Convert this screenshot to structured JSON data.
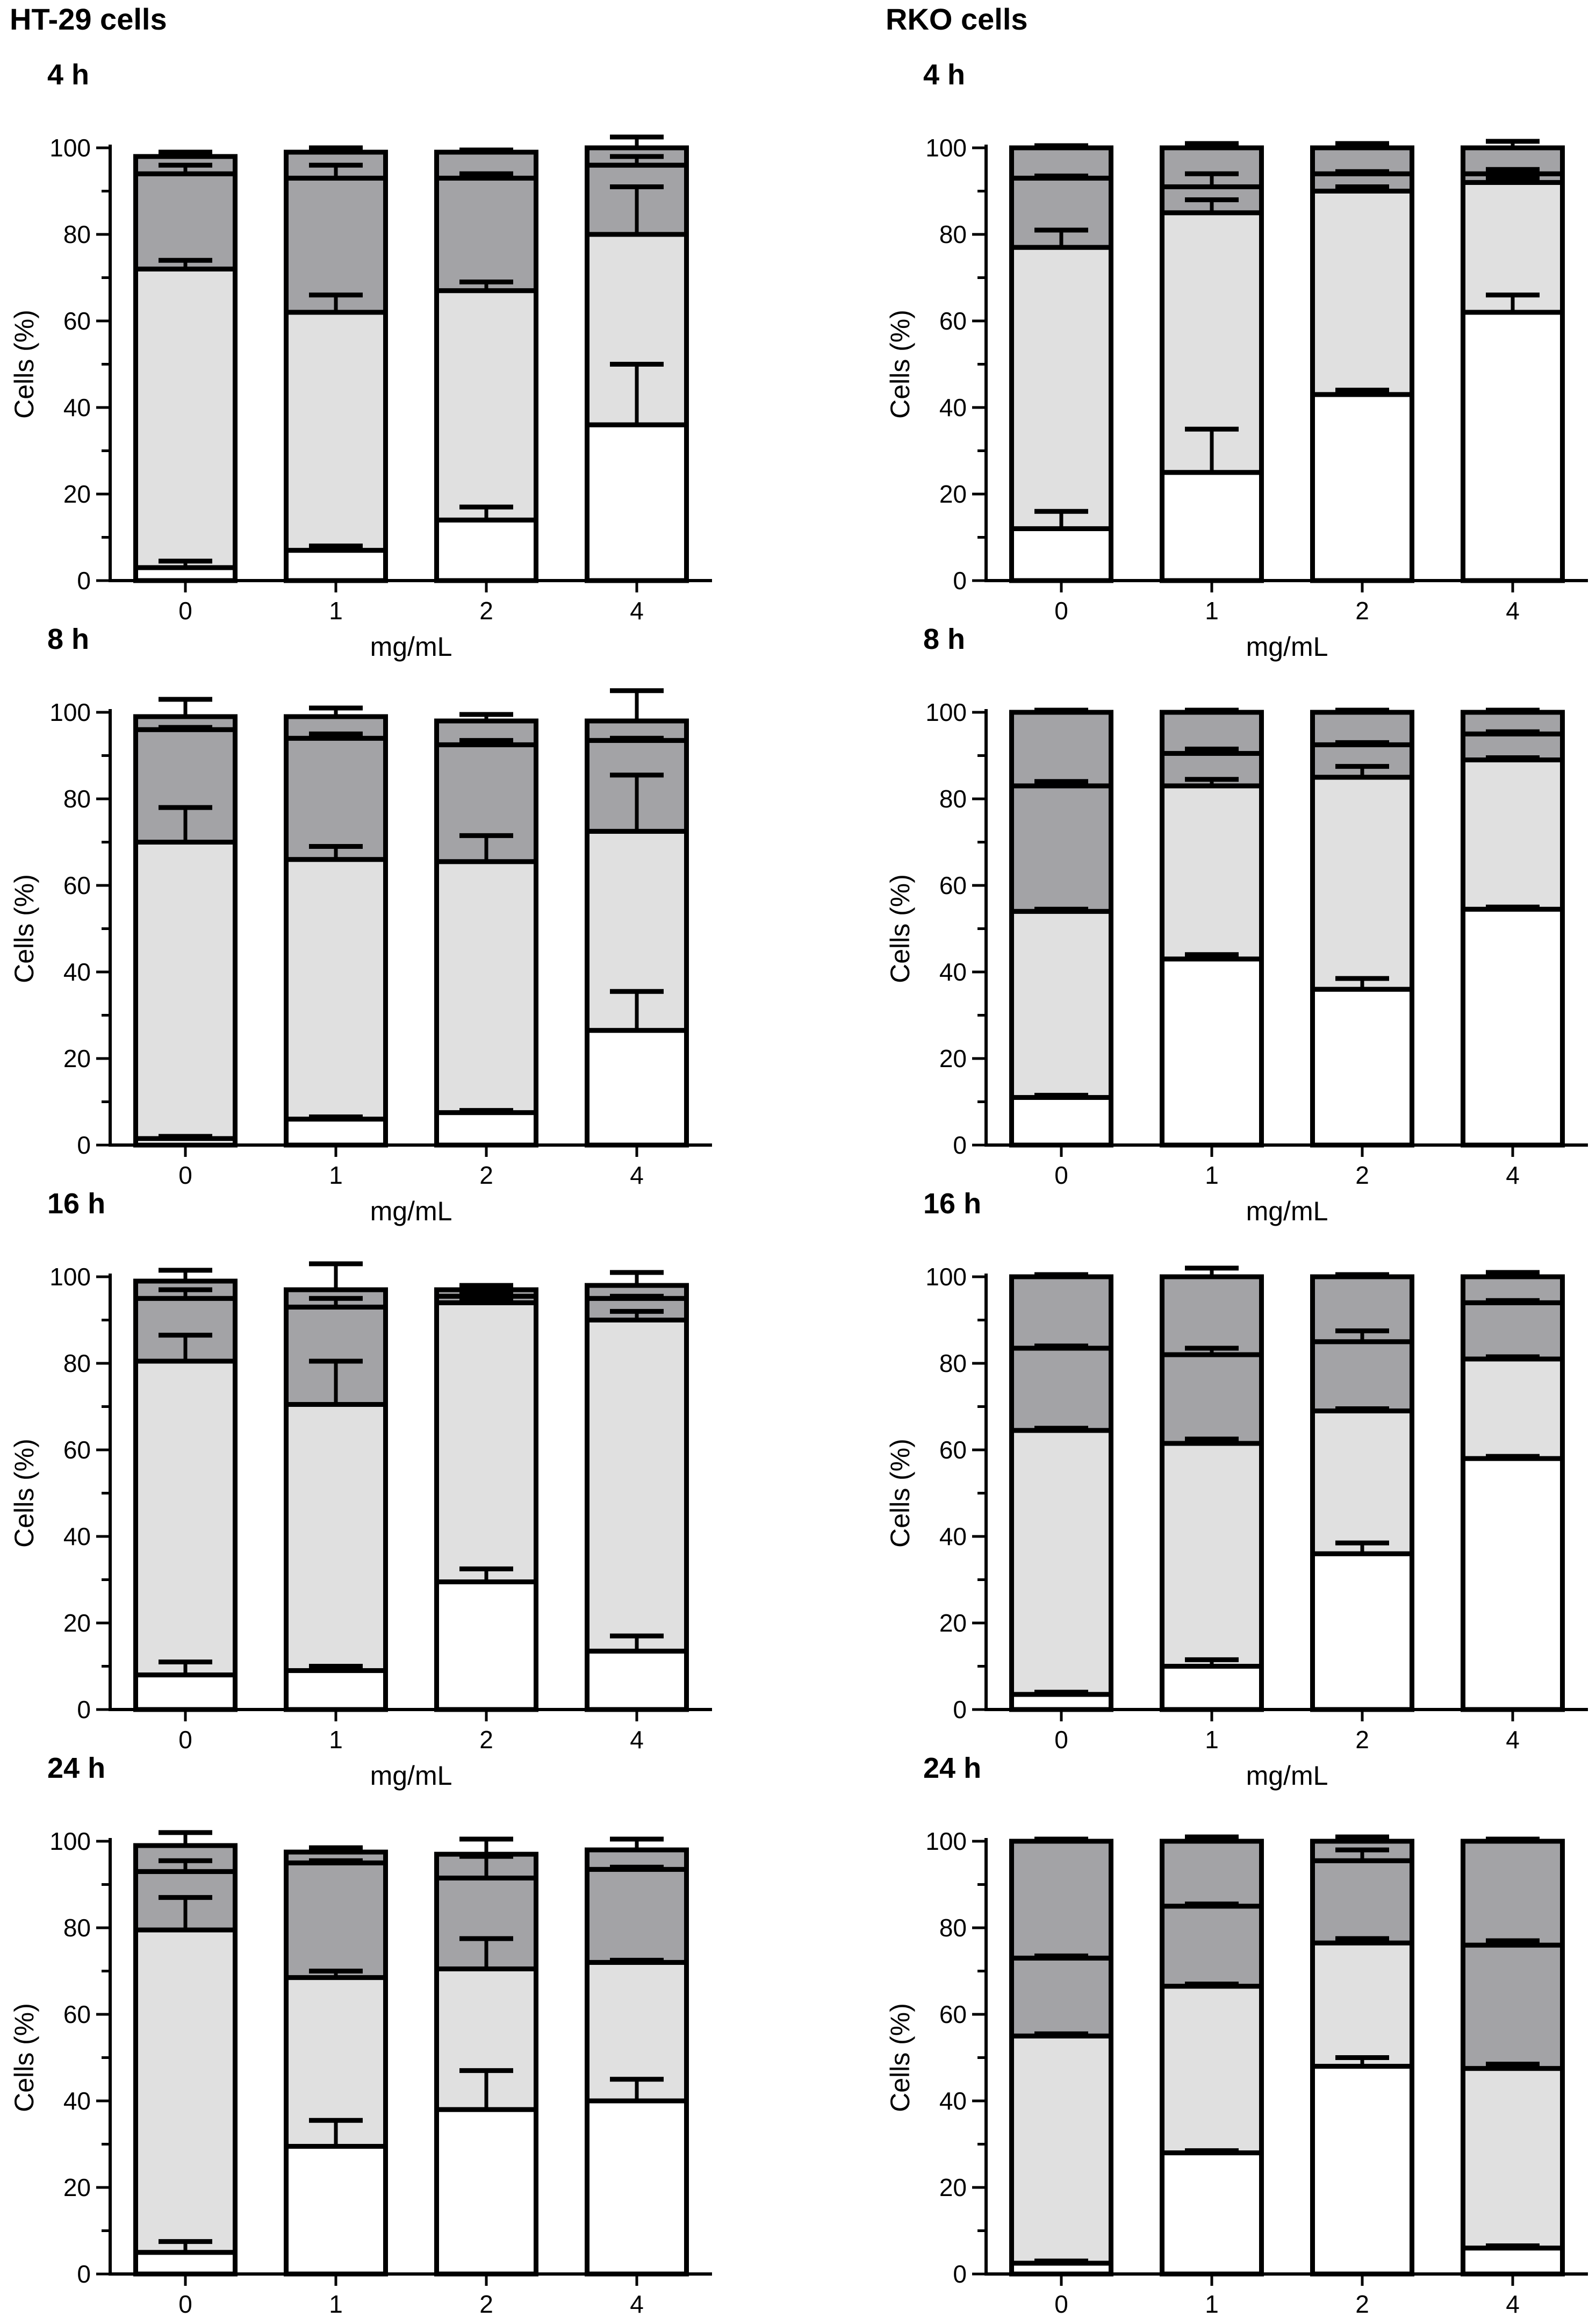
{
  "columns": [
    {
      "title": "HT-29 cells"
    },
    {
      "title": "RKO cells"
    }
  ],
  "colors": {
    "seg1": "#ffffff",
    "seg2": "#e0e0e0",
    "seg3": "#a3a3a6",
    "seg4": "#a3a3a6",
    "stroke": "#000000"
  },
  "chart_data": [
    {
      "type": "bar",
      "stacked": true,
      "cell_line": "HT-29 cells",
      "title": "4 h",
      "categories": [
        "0",
        "1",
        "2",
        "4"
      ],
      "xlabel": "mg/mL",
      "ylabel": "Cells (%)",
      "ylim": [
        0,
        100
      ],
      "yticks": [
        0,
        20,
        40,
        60,
        80,
        100
      ],
      "grid": false,
      "series": [
        {
          "values": [
            3,
            7,
            14,
            36
          ],
          "errors": [
            1.5,
            1,
            3,
            14
          ]
        },
        {
          "values": [
            69,
            55,
            53,
            44
          ],
          "errors": [
            2,
            4,
            2,
            11
          ]
        },
        {
          "values": [
            22,
            31,
            26,
            16
          ],
          "errors": [
            2,
            3,
            1,
            2
          ]
        },
        {
          "values": [
            4,
            6,
            6,
            4
          ],
          "errors": [
            1,
            1,
            0.5,
            2.5
          ]
        }
      ]
    },
    {
      "type": "bar",
      "stacked": true,
      "cell_line": "RKO cells",
      "title": "4 h",
      "categories": [
        "0",
        "1",
        "2",
        "4"
      ],
      "xlabel": "mg/mL",
      "ylabel": "Cells (%)",
      "ylim": [
        0,
        100
      ],
      "yticks": [
        0,
        20,
        40,
        60,
        80,
        100
      ],
      "grid": false,
      "series": [
        {
          "values": [
            12,
            25,
            43,
            62
          ],
          "errors": [
            4,
            10,
            1,
            4
          ]
        },
        {
          "values": [
            65,
            60,
            47,
            30
          ],
          "errors": [
            4,
            3,
            1,
            1
          ]
        },
        {
          "values": [
            16,
            6,
            4,
            2
          ],
          "errors": [
            0.5,
            3,
            0.5,
            1
          ]
        },
        {
          "values": [
            7,
            9,
            6,
            6
          ],
          "errors": [
            0.5,
            1,
            1,
            1.5
          ]
        }
      ]
    },
    {
      "type": "bar",
      "stacked": true,
      "cell_line": "HT-29 cells",
      "title": "8 h",
      "categories": [
        "0",
        "1",
        "2",
        "4"
      ],
      "xlabel": "mg/mL",
      "ylabel": "Cells (%)",
      "ylim": [
        0,
        100
      ],
      "yticks": [
        0,
        20,
        40,
        60,
        80,
        100
      ],
      "grid": false,
      "series": [
        {
          "values": [
            1.5,
            6,
            7.5,
            26.5
          ],
          "errors": [
            0.5,
            0.5,
            0.5,
            9
          ]
        },
        {
          "values": [
            68.5,
            60,
            58,
            46
          ],
          "errors": [
            8,
            3,
            6,
            13
          ]
        },
        {
          "values": [
            26,
            28,
            27,
            21
          ],
          "errors": [
            0.5,
            1,
            1,
            0.5
          ]
        },
        {
          "values": [
            3,
            5,
            5.5,
            4.5
          ],
          "errors": [
            4,
            2,
            1.5,
            7
          ]
        }
      ]
    },
    {
      "type": "bar",
      "stacked": true,
      "cell_line": "RKO cells",
      "title": "8 h",
      "categories": [
        "0",
        "1",
        "2",
        "4"
      ],
      "xlabel": "mg/mL",
      "ylabel": "Cells (%)",
      "ylim": [
        0,
        100
      ],
      "yticks": [
        0,
        20,
        40,
        60,
        80,
        100
      ],
      "grid": false,
      "series": [
        {
          "values": [
            11,
            43,
            36,
            54.5
          ],
          "errors": [
            0.5,
            1,
            2.5,
            0.5
          ]
        },
        {
          "values": [
            43,
            40,
            49,
            34.5
          ],
          "errors": [
            0.5,
            1.5,
            2.5,
            0.5
          ]
        },
        {
          "values": [
            29,
            7.5,
            7.5,
            6
          ],
          "errors": [
            1,
            1,
            0.5,
            0.5
          ]
        },
        {
          "values": [
            17,
            9.5,
            7.5,
            5
          ],
          "errors": [
            0.5,
            0.5,
            0.5,
            0.5
          ]
        }
      ]
    },
    {
      "type": "bar",
      "stacked": true,
      "cell_line": "HT-29 cells",
      "title": "16 h",
      "categories": [
        "0",
        "1",
        "2",
        "4"
      ],
      "xlabel": "mg/mL",
      "ylabel": "Cells (%)",
      "ylim": [
        0,
        100
      ],
      "yticks": [
        0,
        20,
        40,
        60,
        80,
        100
      ],
      "grid": false,
      "series": [
        {
          "values": [
            8,
            9,
            29.5,
            13.5
          ],
          "errors": [
            3,
            1,
            3,
            3.5
          ]
        },
        {
          "values": [
            72.5,
            61.5,
            64.5,
            76.5
          ],
          "errors": [
            6,
            10,
            1,
            2
          ]
        },
        {
          "values": [
            14.5,
            22.5,
            1.5,
            5
          ],
          "errors": [
            2,
            2,
            0.5,
            0.5
          ]
        },
        {
          "values": [
            4,
            4,
            1.5,
            3
          ],
          "errors": [
            2.5,
            6,
            1,
            3
          ]
        }
      ]
    },
    {
      "type": "bar",
      "stacked": true,
      "cell_line": "RKO cells",
      "title": "16 h",
      "categories": [
        "0",
        "1",
        "2",
        "4"
      ],
      "xlabel": "mg/mL",
      "ylabel": "Cells (%)",
      "ylim": [
        0,
        100
      ],
      "yticks": [
        0,
        20,
        40,
        60,
        80,
        100
      ],
      "grid": false,
      "series": [
        {
          "values": [
            3.5,
            10,
            36,
            58
          ],
          "errors": [
            0.5,
            1.5,
            2.5,
            0.5
          ]
        },
        {
          "values": [
            61,
            51.5,
            33,
            23
          ],
          "errors": [
            0.5,
            1,
            0.5,
            0.5
          ]
        },
        {
          "values": [
            19,
            20.5,
            16,
            13
          ],
          "errors": [
            0.5,
            1.5,
            2.5,
            0.5
          ]
        },
        {
          "values": [
            16.5,
            18,
            15,
            6
          ],
          "errors": [
            0.5,
            2,
            0.5,
            1
          ]
        }
      ]
    },
    {
      "type": "bar",
      "stacked": true,
      "cell_line": "HT-29 cells",
      "title": "24 h",
      "categories": [
        "0",
        "1",
        "2",
        "4"
      ],
      "xlabel": "mg/mL",
      "ylabel": "Cells (%)",
      "ylim": [
        0,
        100
      ],
      "yticks": [
        0,
        20,
        40,
        60,
        80,
        100
      ],
      "grid": false,
      "series": [
        {
          "values": [
            5,
            29.5,
            38,
            40
          ],
          "errors": [
            2.5,
            6,
            9,
            5
          ]
        },
        {
          "values": [
            74.5,
            39,
            32.5,
            32
          ],
          "errors": [
            7.5,
            1.5,
            7,
            0.5
          ]
        },
        {
          "values": [
            13.5,
            26.5,
            21,
            21.5
          ],
          "errors": [
            2.5,
            0.5,
            5,
            0.5
          ]
        },
        {
          "values": [
            6,
            2.5,
            5.5,
            4.5
          ],
          "errors": [
            3,
            1,
            3.5,
            2.5
          ]
        }
      ]
    },
    {
      "type": "bar",
      "stacked": true,
      "cell_line": "RKO cells",
      "title": "24 h",
      "categories": [
        "0",
        "1",
        "2",
        "4"
      ],
      "xlabel": "mg/mL",
      "ylabel": "Cells (%)",
      "ylim": [
        0,
        100
      ],
      "yticks": [
        0,
        20,
        40,
        60,
        80,
        100
      ],
      "grid": false,
      "series": [
        {
          "values": [
            2.5,
            28,
            48,
            6
          ],
          "errors": [
            0.5,
            0.5,
            2,
            0.5
          ]
        },
        {
          "values": [
            52.5,
            38.5,
            28.5,
            41.5
          ],
          "errors": [
            0.5,
            0.5,
            1,
            1
          ]
        },
        {
          "values": [
            18,
            18.5,
            19,
            28.5
          ],
          "errors": [
            0.5,
            0.5,
            2.5,
            1
          ]
        },
        {
          "values": [
            27,
            15,
            4.5,
            24
          ],
          "errors": [
            0.5,
            1,
            1,
            0.5
          ]
        }
      ]
    }
  ]
}
